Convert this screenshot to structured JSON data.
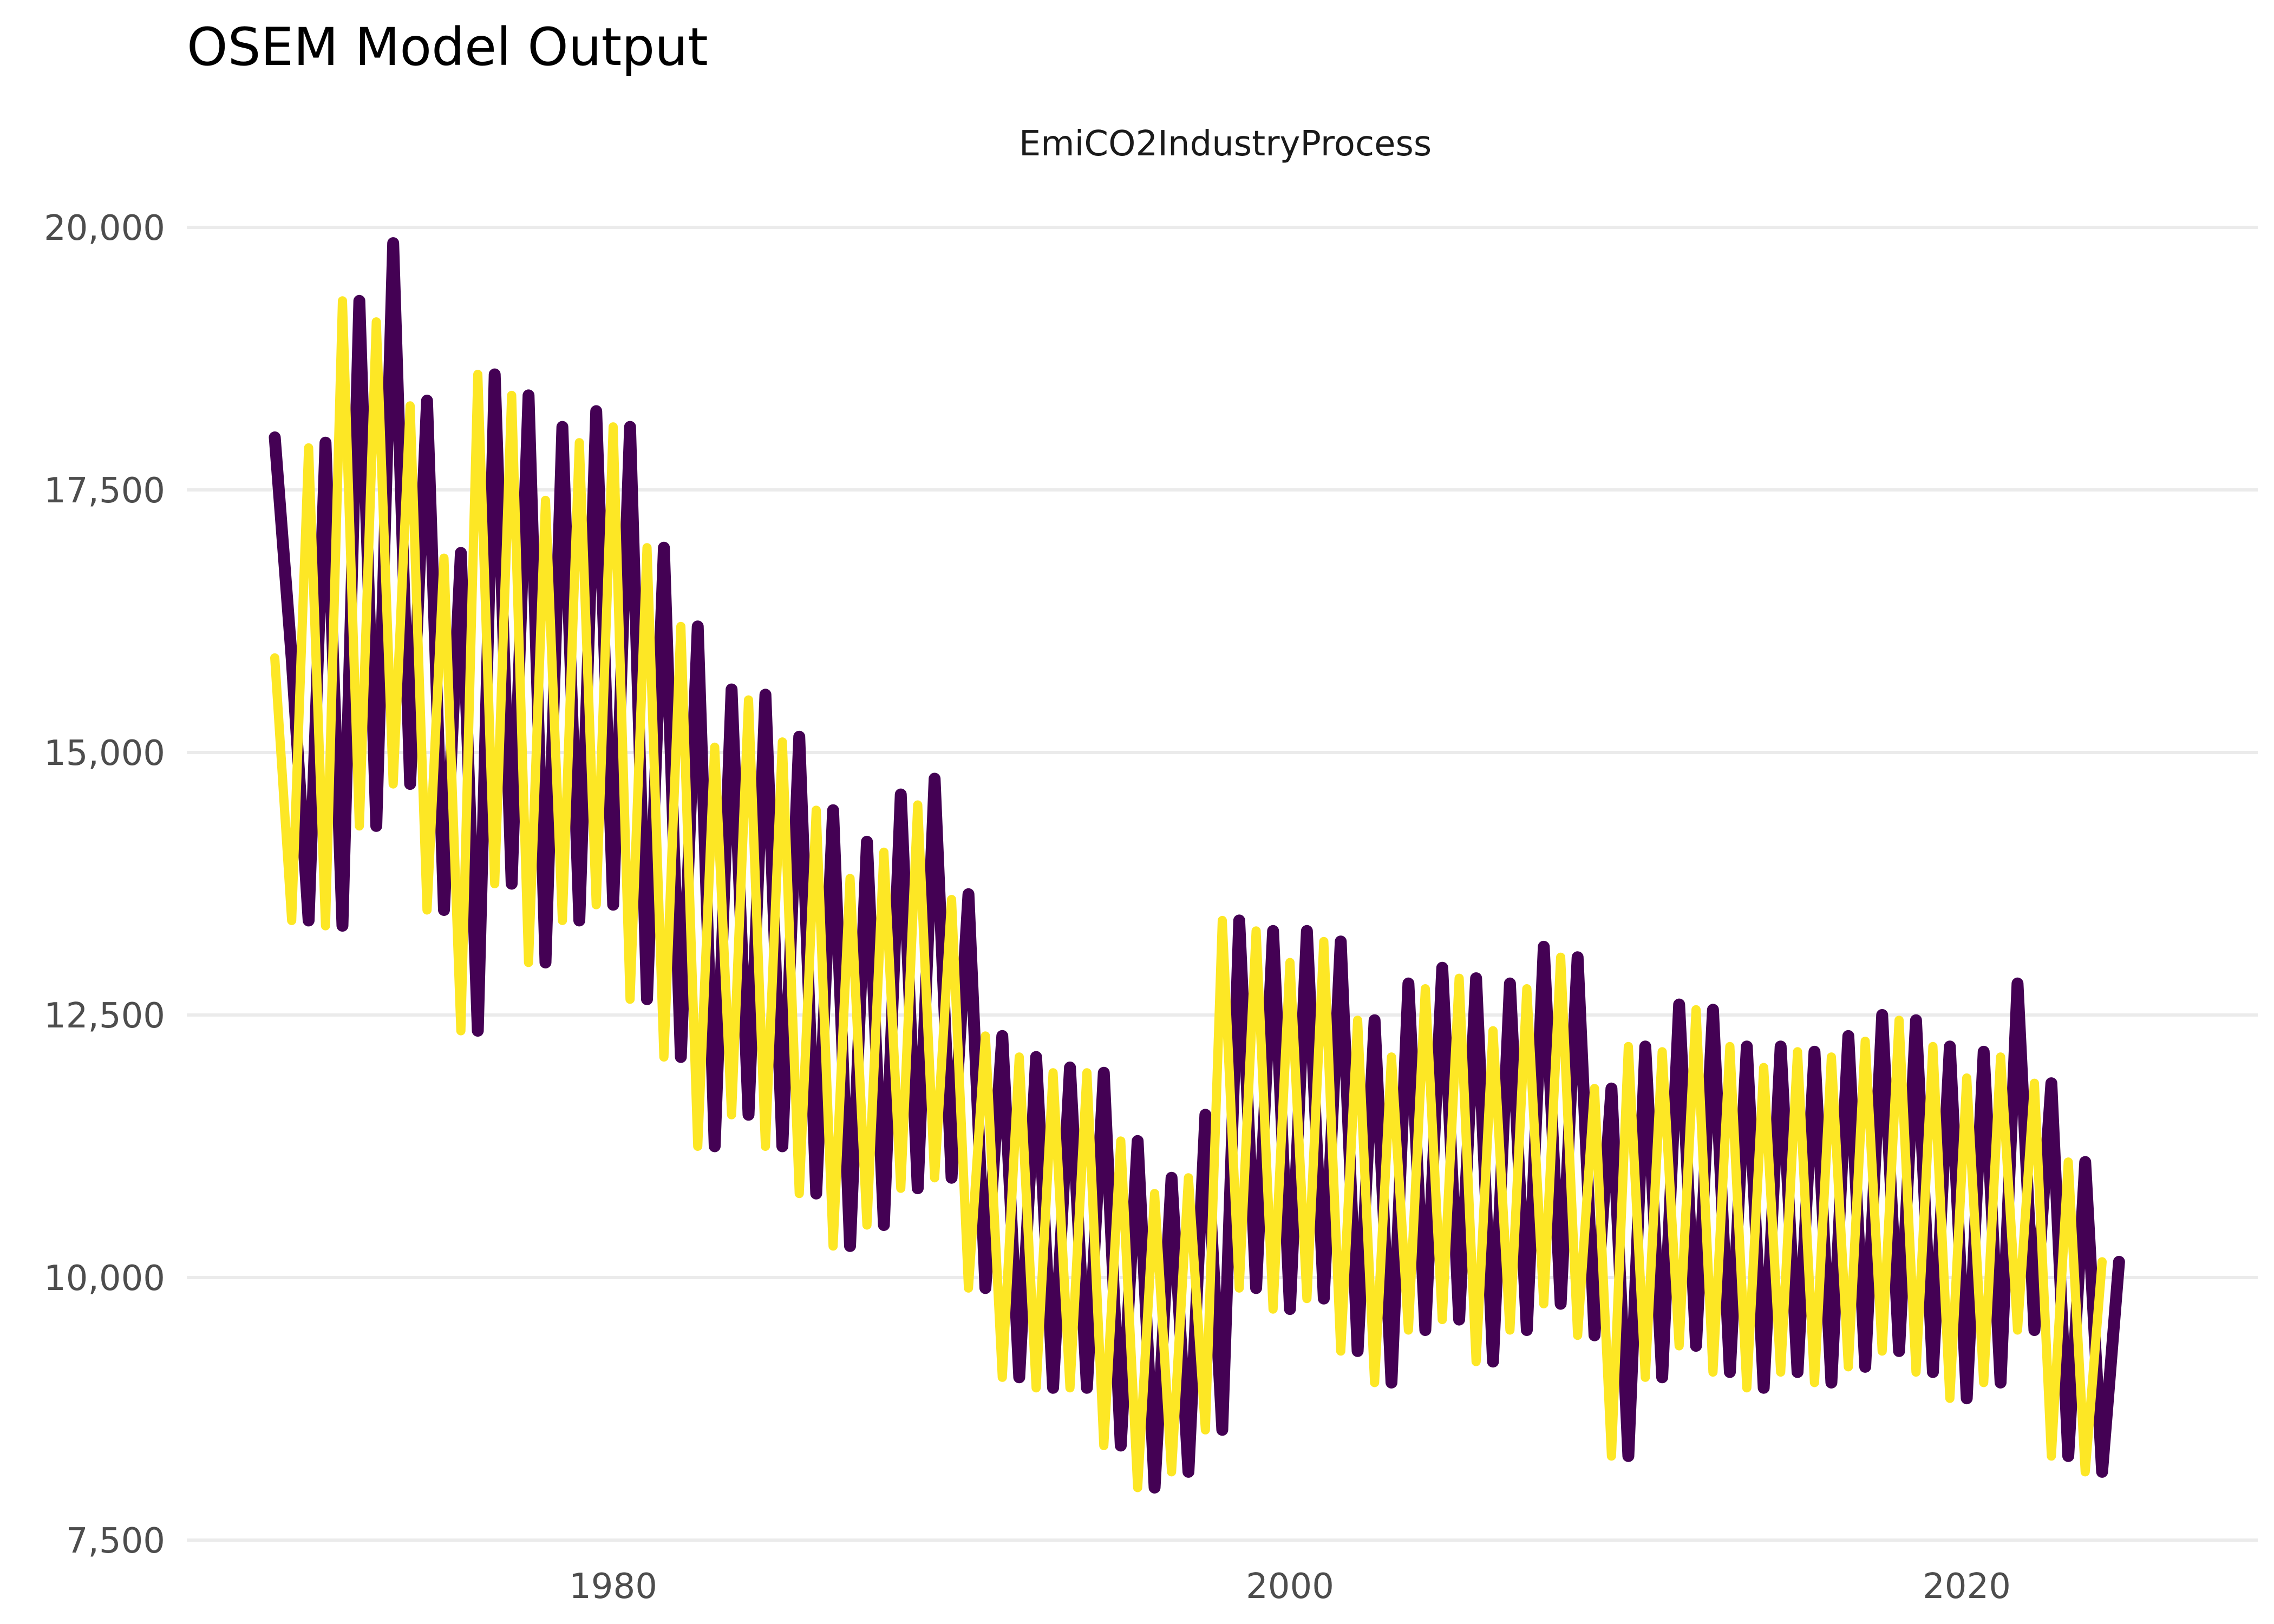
{
  "chart_data": {
    "type": "line",
    "title": "OSEM Model Output",
    "subtitle": "EmiCO2IndustryProcess",
    "xlabel": "",
    "ylabel": "",
    "xlim": [
      1967.4,
      2028.6
    ],
    "ylim": [
      7500,
      20000
    ],
    "x_ticks": [
      1980,
      2000,
      2020
    ],
    "x_tick_labels": [
      "1980",
      "2000",
      "2020"
    ],
    "y_ticks": [
      7500,
      10000,
      12500,
      15000,
      17500,
      20000
    ],
    "y_tick_labels": [
      "7,500",
      "10,000",
      "12,500",
      "15,000",
      "17,500",
      "20,000"
    ],
    "grid": true,
    "legend": "none",
    "x_start": 1970,
    "x_step": 0.5,
    "series": [
      {
        "color": "#440154",
        "line_width": 22,
        "values": [
          18000,
          15900,
          13400,
          17950,
          13350,
          19300,
          14300,
          19850,
          14700,
          18350,
          13500,
          16900,
          12350,
          18600,
          13750,
          18400,
          13000,
          18100,
          13400,
          18250,
          13550,
          18100,
          12650,
          16950,
          12100,
          16200,
          11250,
          15600,
          11550,
          15550,
          11250,
          15150,
          10800,
          14450,
          10300,
          14150,
          10500,
          14600,
          10850,
          14750,
          10950,
          13650,
          9900,
          12300,
          9050,
          12100,
          8950,
          12000,
          8950,
          11950,
          8400,
          11300,
          8000,
          10950,
          8150,
          11550,
          8550,
          13400,
          9900,
          13300,
          9700,
          13300,
          9800,
          13200,
          9300,
          12450,
          9000,
          12800,
          9500,
          12950,
          9600,
          12850,
          9200,
          12800,
          9500,
          13150,
          9750,
          13050,
          9450,
          11800,
          8300,
          12200,
          9050,
          12600,
          9350,
          12550,
          9100,
          12200,
          8950,
          12200,
          9100,
          12150,
          9000,
          12300,
          9150,
          12500,
          9300,
          12450,
          9100,
          12200,
          8850,
          12150,
          9000,
          12800,
          9500,
          11850,
          8300,
          11100,
          8150,
          10150
        ]
      },
      {
        "color": "#fde725",
        "line_width": 17,
        "values": [
          15900,
          13400,
          17900,
          13350,
          19300,
          14300,
          19100,
          14700,
          18300,
          13500,
          16850,
          12350,
          18600,
          13750,
          18400,
          13000,
          17400,
          13400,
          17950,
          13550,
          18100,
          12650,
          16950,
          12100,
          16200,
          11250,
          15050,
          11550,
          15500,
          11250,
          15100,
          10800,
          14450,
          10300,
          13800,
          10500,
          14050,
          10850,
          14500,
          10950,
          13600,
          9900,
          12300,
          9050,
          12100,
          8950,
          11950,
          8950,
          11950,
          8400,
          11300,
          8000,
          10800,
          8150,
          10950,
          8550,
          13400,
          9900,
          13300,
          9700,
          13000,
          9800,
          13200,
          9300,
          12450,
          9000,
          12100,
          9500,
          12750,
          9600,
          12850,
          9200,
          12350,
          9500,
          12750,
          9750,
          13050,
          9450,
          11800,
          8300,
          12200,
          9050,
          12150,
          9350,
          12550,
          9100,
          12200,
          8950,
          12000,
          9100,
          12150,
          9000,
          12100,
          9150,
          12250,
          9300,
          12450,
          9100,
          12200,
          8850,
          11900,
          9000,
          12100,
          9500,
          11850,
          8300,
          11100,
          8150,
          10150
        ]
      }
    ]
  }
}
